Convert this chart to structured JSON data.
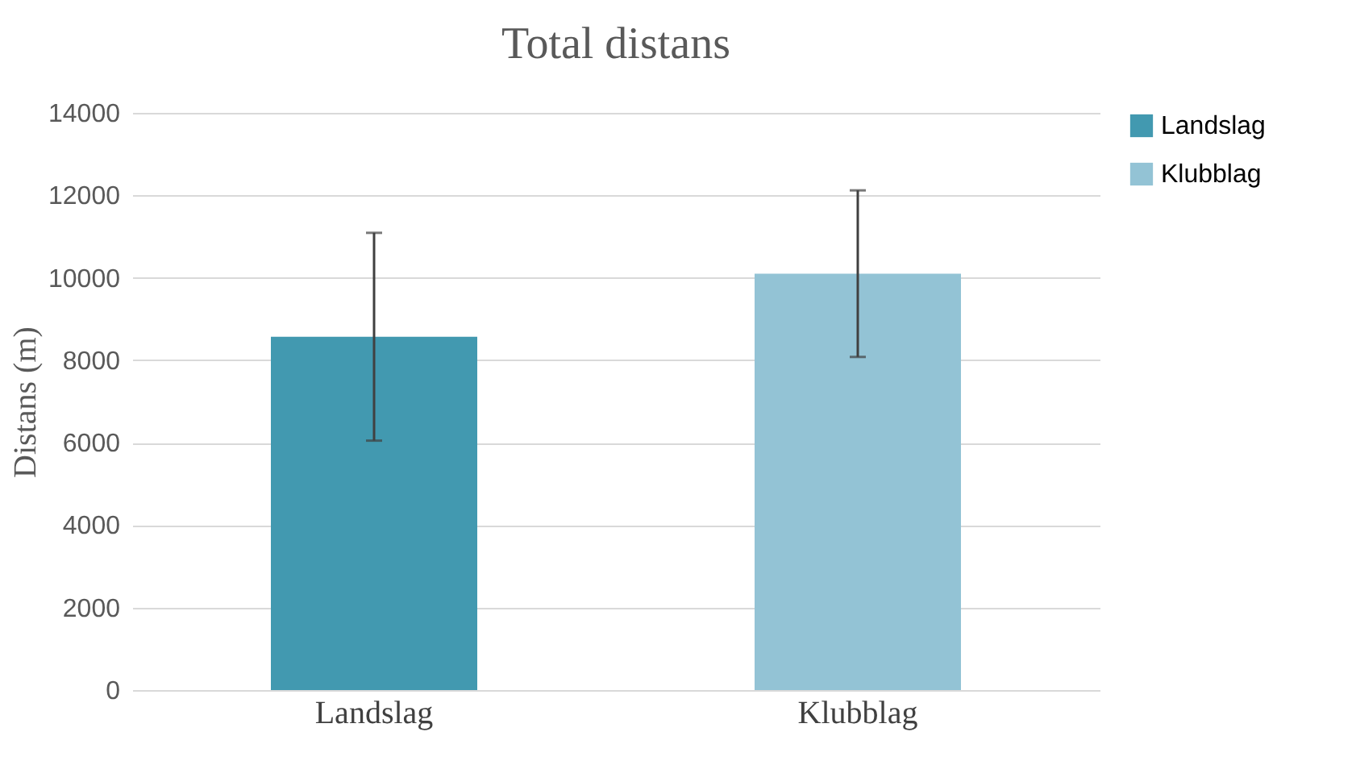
{
  "chart_data": {
    "type": "bar",
    "title": "Total distans",
    "ylabel": "Distans (m)",
    "categories": [
      "Landslag",
      "Klubblag"
    ],
    "series": [
      {
        "name": "Landslag",
        "color": "#4299b0",
        "values": [
          8570,
          null
        ],
        "errors": [
          2520,
          null
        ]
      },
      {
        "name": "Klubblag",
        "color": "#93c3d5",
        "values": [
          null,
          10100
        ],
        "errors": [
          null,
          2020
        ]
      }
    ],
    "ylim": [
      0,
      14000
    ],
    "yticks": [
      0,
      2000,
      4000,
      6000,
      8000,
      10000,
      12000,
      14000
    ],
    "grid": "y",
    "legend": "right"
  }
}
